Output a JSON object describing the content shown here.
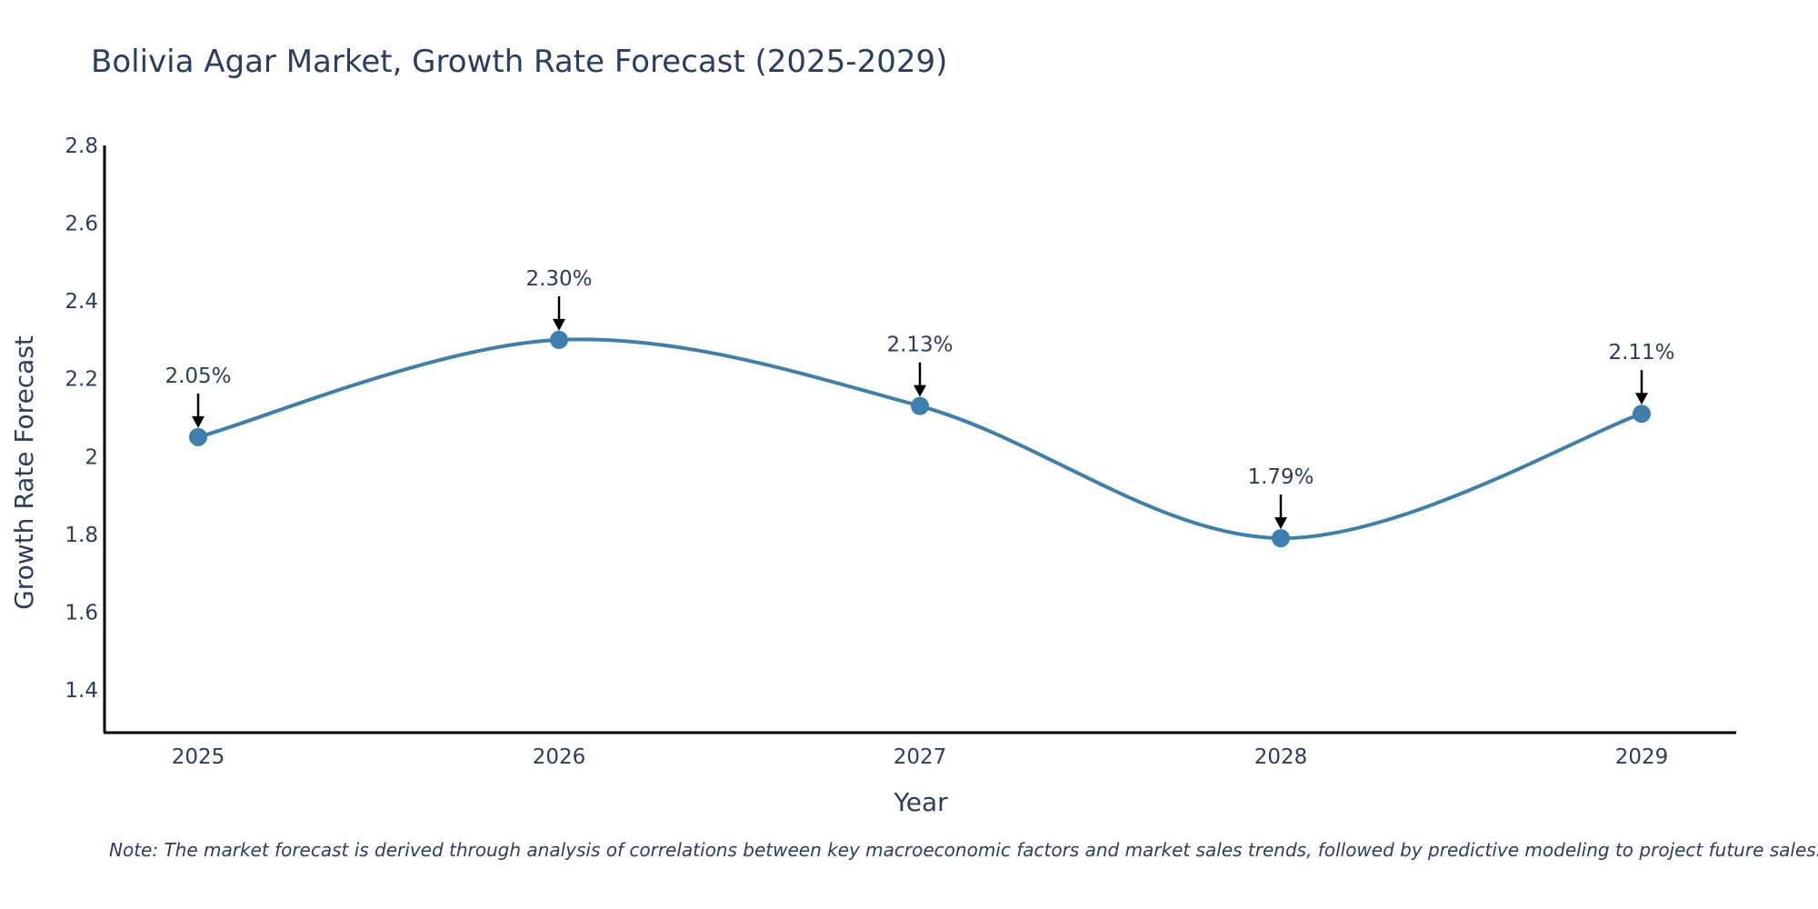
{
  "chart_data": {
    "type": "line",
    "title": "Bolivia Agar Market, Growth Rate Forecast (2025-2029)",
    "xlabel": "Year",
    "ylabel": "Growth Rate Forecast",
    "categories": [
      "2025",
      "2026",
      "2027",
      "2028",
      "2029"
    ],
    "series": [
      {
        "name": "Growth Rate Forecast",
        "values": [
          2.05,
          2.3,
          2.13,
          1.79,
          2.11
        ],
        "color": "#3d7fae"
      }
    ],
    "data_labels": [
      "2.05%",
      "2.30%",
      "2.13%",
      "1.79%",
      "2.11%"
    ],
    "ylim": [
      1.29,
      2.8
    ],
    "yticks": [
      1.4,
      1.6,
      1.8,
      2,
      2.2,
      2.4,
      2.6,
      2.8
    ],
    "ytick_labels": [
      "1.4",
      "1.6",
      "1.8",
      "2",
      "2.2",
      "2.4",
      "2.6",
      "2.8"
    ],
    "grid": false,
    "line_shape": "spline",
    "note": "Note: The market forecast is derived through analysis of correlations between key macroeconomic factors and market sales trends, followed by predictive modeling to project future sales."
  }
}
